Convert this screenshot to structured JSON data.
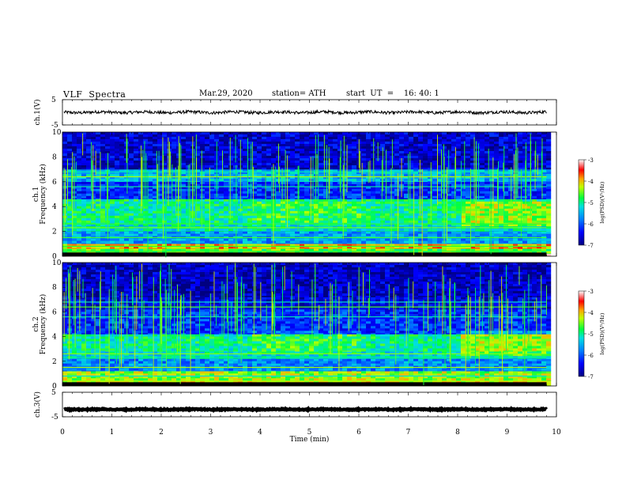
{
  "header": {
    "title": "VLF  Spectra",
    "date": "Mar.29, 2020",
    "station": "station= ATH",
    "start": "start  UT  =    16: 40: 1"
  },
  "chart_data": [
    {
      "type": "line",
      "name": "ch1-waveform",
      "ylabel": "ch.1(V)",
      "yticks": [
        5,
        -5
      ],
      "ylim": [
        -5,
        5
      ],
      "xlim": [
        0,
        10
      ],
      "description_values": {
        "baseline": 0,
        "amplitude_approx": 0.6
      }
    },
    {
      "type": "heatmap",
      "name": "ch1-spectrogram",
      "ylabel": "ch.1\nFrequency (kHz)",
      "ylabel_lines": [
        "ch.1",
        "Frequency (kHz)"
      ],
      "yticks": [
        0,
        2,
        4,
        6,
        8,
        10
      ],
      "ylim": [
        0,
        10
      ],
      "xlim": [
        0,
        9.8
      ],
      "colorbar": {
        "label": "log(PSD)(V²/Hz)",
        "ticks": [
          -3,
          -4,
          -5,
          -6,
          -7
        ],
        "range": [
          -7,
          -3
        ]
      },
      "bands_khz": [
        {
          "from": 0,
          "to": 0.2,
          "level": -3.2
        },
        {
          "from": 0.2,
          "to": 0.6,
          "level": -4.6
        },
        {
          "from": 0.6,
          "to": 1.0,
          "level": -4.0
        },
        {
          "from": 1.0,
          "to": 2.0,
          "level": -5.6
        },
        {
          "from": 2.0,
          "to": 2.6,
          "level": -5.2
        },
        {
          "from": 2.6,
          "to": 4.6,
          "level": -5.0
        },
        {
          "from": 4.6,
          "to": 6.0,
          "level": -6.2
        },
        {
          "from": 6.0,
          "to": 7.0,
          "level": -5.5
        },
        {
          "from": 7.0,
          "to": 10,
          "level": -6.6
        }
      ]
    },
    {
      "type": "heatmap",
      "name": "ch2-spectrogram",
      "ylabel_lines": [
        "ch.2",
        "Frequency (kHz)"
      ],
      "yticks": [
        0,
        2,
        4,
        6,
        8,
        10
      ],
      "ylim": [
        0,
        10
      ],
      "xlim": [
        0,
        9.8
      ],
      "colorbar": {
        "label": "log(PSD)(V²/Hz)",
        "ticks": [
          -3,
          -4,
          -5,
          -6,
          -7
        ],
        "range": [
          -7,
          -3
        ]
      },
      "bands_khz": [
        {
          "from": 0,
          "to": 0.4,
          "level": -4.2
        },
        {
          "from": 0.4,
          "to": 1.2,
          "level": -4.4
        },
        {
          "from": 1.2,
          "to": 2.2,
          "level": -5.7
        },
        {
          "from": 2.2,
          "to": 2.8,
          "level": -5.2
        },
        {
          "from": 2.8,
          "to": 4.2,
          "level": -5.0
        },
        {
          "from": 4.2,
          "to": 6.2,
          "level": -6.2
        },
        {
          "from": 6.2,
          "to": 7.2,
          "level": -6.5
        },
        {
          "from": 7.2,
          "to": 10,
          "level": -6.7
        }
      ]
    },
    {
      "type": "line",
      "name": "ch3-waveform",
      "ylabel": "ch.3(V)",
      "yticks": [
        5,
        -5
      ],
      "ylim": [
        -5,
        5
      ],
      "xlim": [
        0,
        10
      ],
      "description_values": {
        "baseline": -2,
        "amplitude_approx": 0.2
      }
    }
  ],
  "xaxis": {
    "label": "Time  (min)",
    "ticks": [
      0,
      1,
      2,
      3,
      4,
      5,
      6,
      7,
      8,
      9,
      10
    ]
  },
  "colors": {
    "spectrogram_low": "#00007f",
    "spectrogram_high": "#ff0000"
  }
}
